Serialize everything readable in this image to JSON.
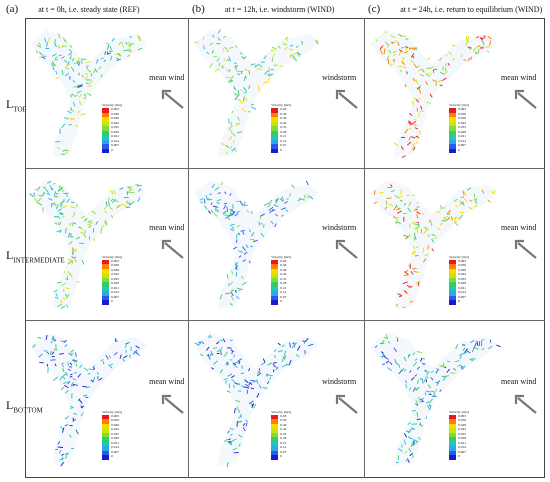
{
  "columns": [
    {
      "letter": "(a)",
      "title": "at t = 0h, i.e. steady state (REF)"
    },
    {
      "letter": "(b)",
      "title": "at t = 12h, i.e. windstorm (WIND)"
    },
    {
      "letter": "(c)",
      "title": "at t = 24h, i.e. return to equilibrium (WIND)"
    }
  ],
  "rows": [
    {
      "main": "L",
      "sub": "TOP"
    },
    {
      "main": "L",
      "sub": "INTERMEDIATE"
    },
    {
      "main": "L",
      "sub": "BOTTOM"
    }
  ],
  "legend_title": "Velocity [m/s]",
  "legend_ticks_a": [
    "0.063",
    "0.056",
    "0.049",
    "0.042",
    "0.035",
    "0.028",
    "0.021",
    "0.014",
    "0.007",
    "0"
  ],
  "legend_ticks_b": [
    "0.63",
    "0.56",
    "0.49",
    "0.42",
    "0.35",
    "0.28",
    "0.21",
    "0.14",
    "0.07",
    "0"
  ],
  "wind_labels": {
    "a1": "mean wind",
    "b1": "windstorm",
    "c1": "mean wind",
    "a2": "mean wind",
    "b2": "windstorm",
    "c2": "mean wind",
    "a3": "mean wind",
    "b3": "windstorm",
    "c3": "mean wind"
  },
  "colors": {
    "scale": [
      "#e41a1c",
      "#ff7f00",
      "#ffd700",
      "#c8e600",
      "#7fdc3c",
      "#33cc66",
      "#22c8b4",
      "#2aa8e8",
      "#2a5ae8",
      "#1a1ad0"
    ]
  }
}
